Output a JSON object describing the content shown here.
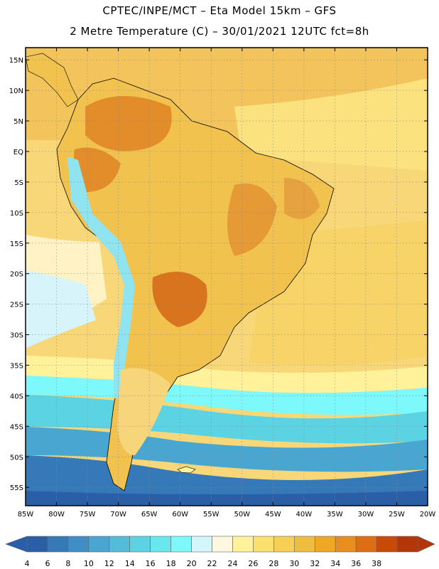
{
  "header": {
    "line1": "CPTEC/INPE/MCT –  Eta Model 15km – GFS",
    "line2": "2 Metre Temperature (C) – 30/01/2021 12UTC fct=8h"
  },
  "map": {
    "lon_range": [
      -85,
      -20
    ],
    "lat_range": [
      -58,
      17
    ],
    "lon_ticks": [
      "85W",
      "80W",
      "75W",
      "70W",
      "65W",
      "60W",
      "55W",
      "50W",
      "45W",
      "40W",
      "35W",
      "30W",
      "25W",
      "20W"
    ],
    "lat_ticks": [
      "15N",
      "10N",
      "5N",
      "EQ",
      "5S",
      "10S",
      "15S",
      "20S",
      "25S",
      "30S",
      "35S",
      "40S",
      "45S",
      "50S",
      "55S"
    ],
    "lat_tick_values": [
      15,
      10,
      5,
      0,
      -5,
      -10,
      -15,
      -20,
      -25,
      -30,
      -35,
      -40,
      -45,
      -50,
      -55
    ],
    "lon_tick_values": [
      -85,
      -80,
      -75,
      -70,
      -65,
      -60,
      -55,
      -50,
      -45,
      -40,
      -35,
      -30,
      -25,
      -20
    ]
  },
  "colorbar": {
    "labels": [
      "4",
      "6",
      "8",
      "10",
      "12",
      "14",
      "16",
      "18",
      "20",
      "22",
      "24",
      "26",
      "28",
      "30",
      "32",
      "34",
      "36",
      "38"
    ],
    "colors": [
      "#2a5fa8",
      "#3579b9",
      "#3f8fc6",
      "#48a6d1",
      "#52bcd9",
      "#5cd3e2",
      "#68e8ee",
      "#7ef9fb",
      "#d2f6fb",
      "#fff7e0",
      "#fff29a",
      "#fbe06e",
      "#f6cf55",
      "#efbe3f",
      "#f0a822",
      "#e88d1e",
      "#de6e13",
      "#c94a07",
      "#b43507"
    ],
    "low_color": "#2a5fa8",
    "high_color": "#b43507"
  }
}
